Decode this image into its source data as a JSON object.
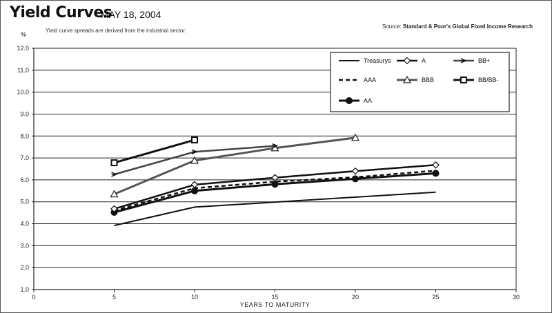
{
  "header": {
    "title": "Yield Curves",
    "date": "MAY 18, 2004",
    "subtitle": "Yield curve spreads are derived from the industrial sector.",
    "source_prefix": "Source: ",
    "source_name": "Standard & Poor's Global Fixed Income Research"
  },
  "chart_data": {
    "type": "line",
    "title": "Yield Curves",
    "xlabel": "YEARS TO MATURITY",
    "ylabel": "%",
    "xlim": [
      0,
      30
    ],
    "ylim": [
      1.0,
      12.0
    ],
    "xticks": [
      0,
      5,
      10,
      15,
      20,
      25,
      30
    ],
    "yticks": [
      "1.0",
      "2.0",
      "3.0",
      "4.0",
      "5.0",
      "6.0",
      "7.0",
      "8.0",
      "9.0",
      "10.0",
      "11.0",
      "12.0"
    ],
    "grid": "horizontal",
    "legend_position": "top-right",
    "series": [
      {
        "name": "Treasurys",
        "style": "solid",
        "marker": "none",
        "color": "#111111",
        "width": 2,
        "points": [
          [
            5,
            3.92
          ],
          [
            10,
            4.76
          ],
          [
            25,
            5.44
          ]
        ]
      },
      {
        "name": "AAA",
        "style": "dashed",
        "marker": "none",
        "color": "#111111",
        "width": 2.5,
        "points": [
          [
            5,
            4.6
          ],
          [
            10,
            5.62
          ],
          [
            15,
            5.92
          ],
          [
            20,
            6.12
          ],
          [
            25,
            6.42
          ]
        ]
      },
      {
        "name": "AA",
        "style": "solid",
        "marker": "filled-circle",
        "color": "#111111",
        "width": 3,
        "points": [
          [
            5,
            4.52
          ],
          [
            10,
            5.5
          ],
          [
            15,
            5.8
          ],
          [
            20,
            6.05
          ],
          [
            25,
            6.3
          ]
        ]
      },
      {
        "name": "A",
        "style": "solid",
        "marker": "diamond",
        "color": "#111111",
        "width": 2.5,
        "points": [
          [
            5,
            4.68
          ],
          [
            10,
            5.78
          ],
          [
            15,
            6.1
          ],
          [
            20,
            6.4
          ],
          [
            25,
            6.68
          ]
        ]
      },
      {
        "name": "BBB",
        "style": "solid",
        "marker": "triangle",
        "color": "#555555",
        "width": 3,
        "points": [
          [
            5,
            5.35
          ],
          [
            10,
            6.88
          ],
          [
            15,
            7.45
          ],
          [
            20,
            7.92
          ]
        ]
      },
      {
        "name": "BB+",
        "style": "solid",
        "marker": "arrow",
        "color": "#444444",
        "width": 2.5,
        "points": [
          [
            5,
            6.25
          ],
          [
            10,
            7.28
          ],
          [
            15,
            7.55
          ]
        ]
      },
      {
        "name": "BB/BB-",
        "style": "solid",
        "marker": "square",
        "color": "#111111",
        "width": 3,
        "points": [
          [
            5,
            6.78
          ],
          [
            10,
            7.82
          ]
        ]
      }
    ]
  }
}
